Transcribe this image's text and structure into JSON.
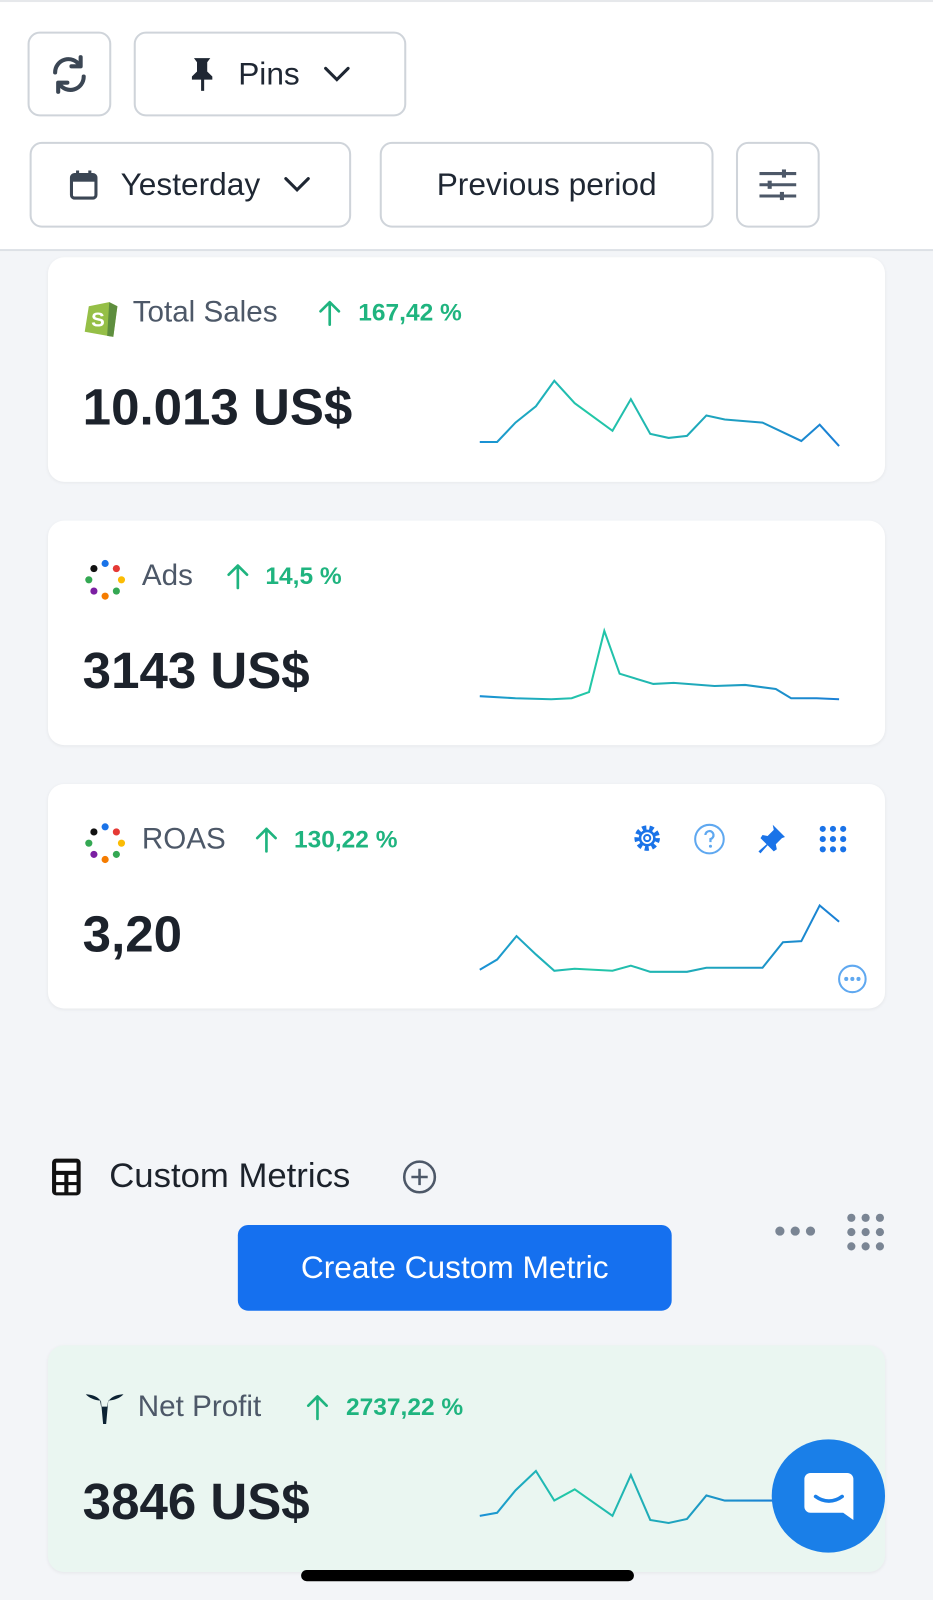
{
  "toolbar": {
    "pins": "Pins",
    "date_range": "Yesterday",
    "compare": "Previous period"
  },
  "metrics": [
    {
      "name": "Total Sales",
      "change": "167,42 %",
      "value": "10.013 US$"
    },
    {
      "name": "Ads",
      "change": "14,5 %",
      "value": "3143 US$"
    },
    {
      "name": "ROAS",
      "change": "130,22 %",
      "value": "3,20"
    }
  ],
  "custom_metrics": {
    "title": "Custom Metrics",
    "button": "Create Custom Metric",
    "net_profit": {
      "name": "Net Profit",
      "change": "2737,22 %",
      "value": "3846 US$"
    }
  }
}
